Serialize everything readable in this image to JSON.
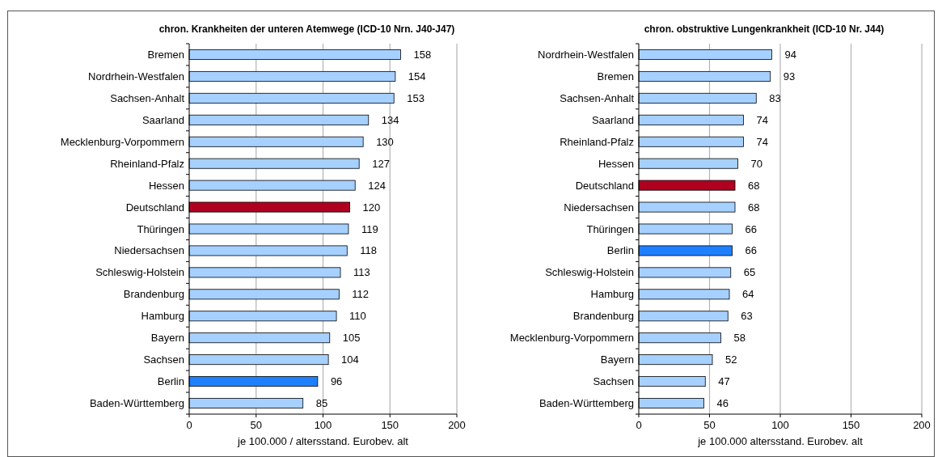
{
  "chart_data": [
    {
      "type": "bar",
      "orientation": "horizontal",
      "title": "chron. Krankheiten der unteren Atemwege (ICD-10 Nrn. J40-J47)",
      "xlabel": "je  100.000 / altersstand. Eurobev. alt",
      "categories": [
        "Bremen",
        "Nordrhein-Westfalen",
        "Sachsen-Anhalt",
        "Saarland",
        "Mecklenburg-Vorpommern",
        "Rheinland-Pfalz",
        "Hessen",
        "Deutschland",
        "Thüringen",
        "Niedersachsen",
        "Schleswig-Holstein",
        "Brandenburg",
        "Hamburg",
        "Bayern",
        "Sachsen",
        "Berlin",
        "Baden-Württemberg"
      ],
      "values": [
        158,
        154,
        153,
        134,
        130,
        127,
        124,
        120,
        119,
        118,
        113,
        112,
        110,
        105,
        104,
        96,
        85
      ],
      "colors": [
        "#a6d0ff",
        "#a6d0ff",
        "#a6d0ff",
        "#a6d0ff",
        "#a6d0ff",
        "#a6d0ff",
        "#a6d0ff",
        "#b00020",
        "#a6d0ff",
        "#a6d0ff",
        "#a6d0ff",
        "#a6d0ff",
        "#a6d0ff",
        "#a6d0ff",
        "#a6d0ff",
        "#1f80ff",
        "#a6d0ff"
      ],
      "xlim": [
        0,
        200
      ],
      "xticks": [
        0,
        50,
        100,
        150,
        200
      ],
      "grid": "x",
      "data_labels": true
    },
    {
      "type": "bar",
      "orientation": "horizontal",
      "title": "chron. obstruktive Lungenkrankheit (ICD-10 Nr. J44)",
      "xlabel": "je  100.000  altersstand. Eurobev. alt",
      "categories": [
        "Nordrhein-Westfalen",
        "Bremen",
        "Sachsen-Anhalt",
        "Saarland",
        "Rheinland-Pfalz",
        "Hessen",
        "Deutschland",
        "Niedersachsen",
        "Thüringen",
        "Berlin",
        "Schleswig-Holstein",
        "Hamburg",
        "Brandenburg",
        "Mecklenburg-Vorpommern",
        "Bayern",
        "Sachsen",
        "Baden-Württemberg"
      ],
      "values": [
        94,
        93,
        83,
        74,
        74,
        70,
        68,
        68,
        66,
        66,
        65,
        64,
        63,
        58,
        52,
        47,
        46
      ],
      "colors": [
        "#a6d0ff",
        "#a6d0ff",
        "#a6d0ff",
        "#a6d0ff",
        "#a6d0ff",
        "#a6d0ff",
        "#b00020",
        "#a6d0ff",
        "#a6d0ff",
        "#1f80ff",
        "#a6d0ff",
        "#a6d0ff",
        "#a6d0ff",
        "#a6d0ff",
        "#a6d0ff",
        "#a6d0ff",
        "#a6d0ff"
      ],
      "xlim": [
        0,
        200
      ],
      "xticks": [
        0,
        50,
        100,
        150,
        200
      ],
      "grid": "x",
      "data_labels": true
    }
  ]
}
